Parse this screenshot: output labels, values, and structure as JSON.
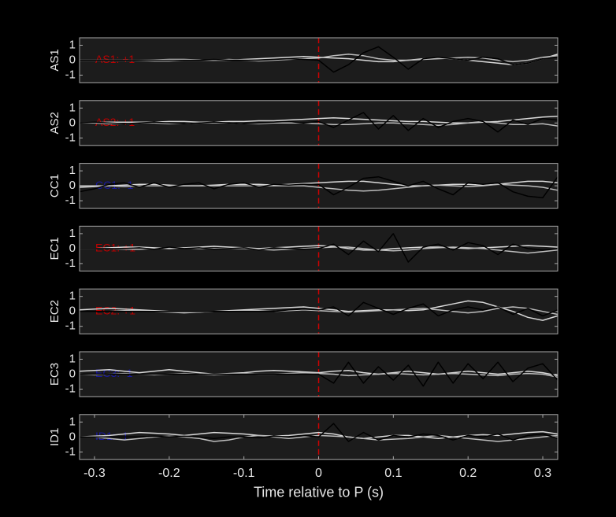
{
  "chart_data": [
    {
      "type": "line",
      "ylabel": "AS1",
      "annotation": "AS1: +1",
      "annotation_color": "#c00000",
      "x": [
        -0.32,
        -0.3,
        -0.28,
        -0.26,
        -0.24,
        -0.22,
        -0.2,
        -0.18,
        -0.16,
        -0.14,
        -0.12,
        -0.1,
        -0.08,
        -0.06,
        -0.04,
        -0.02,
        0,
        0.02,
        0.04,
        0.06,
        0.08,
        0.1,
        0.12,
        0.14,
        0.16,
        0.18,
        0.2,
        0.22,
        0.24,
        0.26,
        0.28,
        0.3,
        0.32
      ],
      "series": [
        {
          "color": "#d9d9d9",
          "values": [
            0,
            0,
            0,
            0,
            0,
            0.02,
            0.05,
            0.05,
            0.02,
            0,
            0,
            0.05,
            0.1,
            0.15,
            0.2,
            0.25,
            0.2,
            0.15,
            0.1,
            0,
            -0.1,
            -0.1,
            0,
            0.1,
            0.15,
            0.1,
            0,
            -0.1,
            -0.2,
            -0.3,
            -0.2,
            0.1,
            0.4
          ]
        },
        {
          "color": "#bdbdbd",
          "values": [
            0,
            0,
            0,
            0,
            -0.02,
            -0.05,
            -0.05,
            0,
            0,
            0,
            0.05,
            0,
            -0.05,
            0,
            0.05,
            0.1,
            0.15,
            0.3,
            0.4,
            0.3,
            0.1,
            0,
            0,
            0.05,
            0.1,
            0.15,
            0.2,
            0.15,
            0,
            -0.1,
            0,
            0.2,
            0.3
          ]
        },
        {
          "color": "#000000",
          "values": [
            0,
            0,
            0,
            0,
            0,
            0,
            0,
            0,
            0,
            0.05,
            0,
            0,
            0,
            0.05,
            0.1,
            0.05,
            0,
            -0.8,
            -0.3,
            0.5,
            0.9,
            0.2,
            -0.6,
            0.1,
            0.2,
            0.1,
            0,
            0.2,
            0.1,
            -0.3,
            -0.2,
            0.1,
            0.2
          ]
        }
      ],
      "xlim": [
        -0.32,
        0.32
      ],
      "ylim": [
        -1.5,
        1.5
      ],
      "yticks": [
        -1,
        0,
        1
      ],
      "vline": 0,
      "vline_color": "#d00000"
    },
    {
      "type": "line",
      "ylabel": "AS2",
      "annotation": "AS2: +1",
      "annotation_color": "#c00000",
      "x": [
        -0.32,
        -0.3,
        -0.28,
        -0.26,
        -0.24,
        -0.22,
        -0.2,
        -0.18,
        -0.16,
        -0.14,
        -0.12,
        -0.1,
        -0.08,
        -0.06,
        -0.04,
        -0.02,
        0,
        0.02,
        0.04,
        0.06,
        0.08,
        0.1,
        0.12,
        0.14,
        0.16,
        0.18,
        0.2,
        0.22,
        0.24,
        0.26,
        0.28,
        0.3,
        0.32
      ],
      "series": [
        {
          "color": "#d9d9d9",
          "values": [
            0,
            0.02,
            0.05,
            0.05,
            0.05,
            0.05,
            0.1,
            0.1,
            0.05,
            0.05,
            0.1,
            0.1,
            0.15,
            0.15,
            0.2,
            0.25,
            0.3,
            0.35,
            0.3,
            0.25,
            0.2,
            0.15,
            0.1,
            0.1,
            0.05,
            0,
            0,
            0.05,
            0.1,
            0.2,
            0.3,
            0.4,
            0.45
          ]
        },
        {
          "color": "#bdbdbd",
          "values": [
            0,
            0,
            -0.05,
            -0.05,
            0,
            0,
            -0.05,
            -0.05,
            0,
            0,
            0,
            -0.05,
            -0.05,
            0,
            0,
            0,
            -0.05,
            -0.1,
            -0.1,
            -0.05,
            0,
            0,
            -0.05,
            -0.1,
            -0.15,
            -0.1,
            0,
            0.1,
            0,
            -0.1,
            -0.1,
            -0.05,
            -0.2
          ]
        },
        {
          "color": "#000000",
          "values": [
            0,
            0.05,
            0,
            -0.05,
            0,
            0.05,
            0,
            -0.05,
            0,
            0.05,
            0,
            -0.05,
            0,
            0.05,
            0.1,
            0,
            0.1,
            -0.3,
            0.2,
            0.7,
            -0.4,
            0.5,
            -0.5,
            0.3,
            -0.3,
            0.1,
            0.3,
            0.1,
            -0.6,
            0.2,
            -0.1,
            0.3,
            0.2
          ]
        }
      ],
      "xlim": [
        -0.32,
        0.32
      ],
      "ylim": [
        -1.5,
        1.5
      ],
      "yticks": [
        -1,
        0,
        1
      ],
      "vline": 0,
      "vline_color": "#d00000"
    },
    {
      "type": "line",
      "ylabel": "CC1",
      "annotation": "CC1: -1",
      "annotation_color": "#1a1aa0",
      "x": [
        -0.32,
        -0.3,
        -0.28,
        -0.26,
        -0.24,
        -0.22,
        -0.2,
        -0.18,
        -0.16,
        -0.14,
        -0.12,
        -0.1,
        -0.08,
        -0.06,
        -0.04,
        -0.02,
        0,
        0.02,
        0.04,
        0.06,
        0.08,
        0.1,
        0.12,
        0.14,
        0.16,
        0.18,
        0.2,
        0.22,
        0.24,
        0.26,
        0.28,
        0.3,
        0.32
      ],
      "series": [
        {
          "color": "#d9d9d9",
          "values": [
            -0.1,
            -0.05,
            0,
            0.05,
            0.1,
            0.1,
            0.05,
            0,
            0,
            0.05,
            0.1,
            0.1,
            0.1,
            0.05,
            0.1,
            0.15,
            0.2,
            0.25,
            0.3,
            0.3,
            0.2,
            0.1,
            0,
            0,
            0.05,
            0.1,
            0.1,
            0.05,
            0.1,
            0.2,
            0.3,
            0.3,
            0.2
          ]
        },
        {
          "color": "#bdbdbd",
          "values": [
            0,
            0,
            0,
            -0.05,
            0,
            0,
            0,
            0,
            0,
            0,
            0,
            0,
            0,
            0,
            0,
            0,
            -0.1,
            -0.2,
            -0.3,
            -0.35,
            -0.3,
            -0.2,
            -0.1,
            0,
            0.05,
            0,
            -0.05,
            0,
            0.1,
            0.05,
            0,
            -0.1,
            -0.3
          ]
        },
        {
          "color": "#000000",
          "values": [
            -0.4,
            -0.2,
            0.1,
            0.2,
            -0.1,
            0.2,
            -0.1,
            0.1,
            0.2,
            -0.2,
            0.1,
            0.2,
            -0.1,
            0.1,
            0.05,
            0.1,
            0.1,
            -0.6,
            -0.1,
            0.5,
            0.6,
            0.3,
            0,
            0.3,
            -0.2,
            -0.6,
            0.2,
            0.1,
            0.2,
            -0.4,
            -0.7,
            -0.8,
            0.6
          ]
        }
      ],
      "xlim": [
        -0.32,
        0.32
      ],
      "ylim": [
        -1.5,
        1.5
      ],
      "yticks": [
        -1,
        0,
        1
      ],
      "vline": 0,
      "vline_color": "#d00000"
    },
    {
      "type": "line",
      "ylabel": "EC1",
      "annotation": "EC1: +1",
      "annotation_color": "#c00000",
      "x": [
        -0.32,
        -0.3,
        -0.28,
        -0.26,
        -0.24,
        -0.22,
        -0.2,
        -0.18,
        -0.16,
        -0.14,
        -0.12,
        -0.1,
        -0.08,
        -0.06,
        -0.04,
        -0.02,
        0,
        0.02,
        0.04,
        0.06,
        0.08,
        0.1,
        0.12,
        0.14,
        0.16,
        0.18,
        0.2,
        0.22,
        0.24,
        0.26,
        0.28,
        0.3,
        0.32
      ],
      "series": [
        {
          "color": "#d9d9d9",
          "values": [
            0,
            0,
            0.05,
            0.1,
            0.1,
            0.05,
            0,
            0.05,
            0.1,
            0.15,
            0.1,
            0.05,
            0,
            0.05,
            0.1,
            0.15,
            0.2,
            0.15,
            0,
            -0.1,
            -0.1,
            0,
            0.05,
            0.1,
            0.1,
            0.05,
            0,
            0.05,
            0.1,
            0.15,
            0.2,
            0.15,
            0.1
          ]
        },
        {
          "color": "#bdbdbd",
          "values": [
            0,
            0,
            0,
            -0.05,
            -0.05,
            0,
            0.05,
            0.05,
            0,
            0,
            0,
            0,
            -0.05,
            -0.1,
            -0.05,
            0,
            0.05,
            0.1,
            0.1,
            0,
            -0.1,
            -0.15,
            -0.1,
            0,
            0.05,
            0.1,
            0.05,
            0,
            -0.1,
            -0.2,
            -0.3,
            -0.2,
            -0.1
          ]
        },
        {
          "color": "#000000",
          "values": [
            0,
            0,
            0,
            0,
            0.05,
            -0.05,
            0.1,
            0,
            0.05,
            -0.05,
            0,
            0.05,
            -0.1,
            0.05,
            0,
            -0.05,
            0,
            0.3,
            -0.4,
            0.5,
            -0.2,
            1.0,
            -0.9,
            0.1,
            0.3,
            -0.1,
            0.4,
            0.2,
            -0.4,
            0.3,
            0,
            -0.1,
            0
          ]
        }
      ],
      "xlim": [
        -0.32,
        0.32
      ],
      "ylim": [
        -1.5,
        1.5
      ],
      "yticks": [
        -1,
        0,
        1
      ],
      "vline": 0,
      "vline_color": "#d00000"
    },
    {
      "type": "line",
      "ylabel": "EC2",
      "annotation": "EC2: +1",
      "annotation_color": "#c00000",
      "x": [
        -0.32,
        -0.3,
        -0.28,
        -0.26,
        -0.24,
        -0.22,
        -0.2,
        -0.18,
        -0.16,
        -0.14,
        -0.12,
        -0.1,
        -0.08,
        -0.06,
        -0.04,
        -0.02,
        0,
        0.02,
        0.04,
        0.06,
        0.08,
        0.1,
        0.12,
        0.14,
        0.16,
        0.18,
        0.2,
        0.22,
        0.24,
        0.26,
        0.28,
        0.3,
        0.32
      ],
      "series": [
        {
          "color": "#d9d9d9",
          "values": [
            0.1,
            0.15,
            0.2,
            0.15,
            0.1,
            0.05,
            0,
            -0.05,
            -0.05,
            0,
            0.05,
            0.1,
            0.15,
            0.2,
            0.25,
            0.3,
            0.2,
            0.1,
            0,
            0.05,
            0.1,
            0.1,
            0.05,
            0.1,
            0.3,
            0.5,
            0.7,
            0.6,
            0.3,
            0,
            -0.4,
            -0.6,
            -0.3
          ]
        },
        {
          "color": "#bdbdbd",
          "values": [
            0,
            0,
            0,
            0.05,
            0.05,
            0,
            -0.05,
            -0.1,
            -0.05,
            0,
            0,
            0.05,
            0.05,
            0,
            0.05,
            0.1,
            0.05,
            0,
            -0.05,
            0,
            0.05,
            0.1,
            0.15,
            0.2,
            0.1,
            0,
            -0.1,
            0,
            0.2,
            0.3,
            0.2,
            0,
            -0.2
          ]
        },
        {
          "color": "#000000",
          "values": [
            0,
            0,
            0,
            0,
            0,
            0,
            0,
            0,
            0,
            0,
            0,
            0,
            0,
            0,
            0.1,
            0.15,
            0.1,
            0.3,
            -0.3,
            0.6,
            0.2,
            -0.2,
            0.2,
            0.5,
            -0.3,
            0.1,
            0.3,
            0.1,
            0.3,
            -0.2,
            0.2,
            -0.3,
            0.1
          ]
        }
      ],
      "xlim": [
        -0.32,
        0.32
      ],
      "ylim": [
        -1.5,
        1.5
      ],
      "yticks": [
        -1,
        0,
        1
      ],
      "vline": 0,
      "vline_color": "#d00000"
    },
    {
      "type": "line",
      "ylabel": "EC3",
      "annotation": "EC3: -1",
      "annotation_color": "#1a1aa0",
      "x": [
        -0.32,
        -0.3,
        -0.28,
        -0.26,
        -0.24,
        -0.22,
        -0.2,
        -0.18,
        -0.16,
        -0.14,
        -0.12,
        -0.1,
        -0.08,
        -0.06,
        -0.04,
        -0.02,
        0,
        0.02,
        0.04,
        0.06,
        0.08,
        0.1,
        0.12,
        0.14,
        0.16,
        0.18,
        0.2,
        0.22,
        0.24,
        0.26,
        0.28,
        0.3,
        0.32
      ],
      "series": [
        {
          "color": "#d9d9d9",
          "values": [
            0.2,
            0.25,
            0.3,
            0.2,
            0.1,
            0.2,
            0.3,
            0.2,
            0.1,
            0,
            0.05,
            0.1,
            0.2,
            0.25,
            0.2,
            0.15,
            0.1,
            0.2,
            0.25,
            0.1,
            0,
            0.1,
            0.2,
            0.1,
            0,
            0.1,
            0.2,
            0.1,
            0,
            0.1,
            0.2,
            0.1,
            -0.1
          ]
        },
        {
          "color": "#bdbdbd",
          "values": [
            0,
            -0.05,
            0,
            0.05,
            0,
            -0.05,
            0,
            0.05,
            0,
            -0.05,
            0,
            0.05,
            0,
            0,
            0.05,
            0.1,
            0.05,
            0,
            -0.1,
            -0.05,
            0,
            0.05,
            0,
            -0.05,
            0,
            0.05,
            0,
            -0.05,
            -0.1,
            0,
            0.05,
            0,
            -0.2
          ]
        },
        {
          "color": "#000000",
          "values": [
            0,
            0,
            0,
            0,
            0,
            0,
            0,
            0,
            0,
            0,
            0,
            0,
            0,
            0,
            0,
            0,
            0,
            -0.6,
            0.8,
            -0.6,
            0.5,
            -0.4,
            0.6,
            -0.8,
            0.8,
            -0.6,
            0.7,
            -0.3,
            0.8,
            -0.5,
            0.4,
            0.7,
            -0.4
          ]
        }
      ],
      "xlim": [
        -0.32,
        0.32
      ],
      "ylim": [
        -1.5,
        1.5
      ],
      "yticks": [
        -1,
        0,
        1
      ],
      "vline": 0,
      "vline_color": "#d00000"
    },
    {
      "type": "line",
      "ylabel": "ID1",
      "annotation": "ID1: -1",
      "annotation_color": "#1a1aa0",
      "x": [
        -0.32,
        -0.3,
        -0.28,
        -0.26,
        -0.24,
        -0.22,
        -0.2,
        -0.18,
        -0.16,
        -0.14,
        -0.12,
        -0.1,
        -0.08,
        -0.06,
        -0.04,
        -0.02,
        0,
        0.02,
        0.04,
        0.06,
        0.08,
        0.1,
        0.12,
        0.14,
        0.16,
        0.18,
        0.2,
        0.22,
        0.24,
        0.26,
        0.28,
        0.3,
        0.32
      ],
      "series": [
        {
          "color": "#d9d9d9",
          "values": [
            0,
            0.05,
            0.1,
            0.2,
            0.3,
            0.25,
            0.2,
            0.1,
            0.2,
            0.3,
            0.25,
            0.2,
            0.1,
            0.05,
            0.1,
            0.2,
            0.3,
            0.2,
            0,
            -0.1,
            0,
            0.1,
            0.1,
            0,
            -0.1,
            0,
            0.1,
            0.15,
            0.1,
            0.2,
            0.3,
            0.35,
            0.2
          ]
        },
        {
          "color": "#bdbdbd",
          "values": [
            0,
            0,
            -0.1,
            -0.2,
            -0.1,
            0,
            0.05,
            0,
            -0.1,
            -0.3,
            -0.2,
            0,
            0.1,
            0,
            -0.1,
            0,
            0.1,
            0.05,
            0,
            -0.1,
            -0.2,
            -0.15,
            -0.1,
            0,
            0.1,
            0,
            -0.1,
            -0.2,
            -0.3,
            -0.2,
            -0.1,
            0,
            0.1
          ]
        },
        {
          "color": "#000000",
          "values": [
            0,
            0,
            0,
            0,
            0,
            0.05,
            0,
            0.05,
            0,
            -0.1,
            0,
            0,
            -0.05,
            0.05,
            0,
            0.1,
            0,
            0.9,
            -0.3,
            0.3,
            -0.2,
            0.1,
            0,
            0.2,
            0.1,
            -0.2,
            0.1,
            0,
            0.2,
            -0.2,
            0.1,
            0.2,
            -0.1
          ]
        }
      ],
      "xlim": [
        -0.32,
        0.32
      ],
      "ylim": [
        -1.5,
        1.5
      ],
      "yticks": [
        -1,
        0,
        1
      ],
      "vline": 0,
      "vline_color": "#d00000",
      "xticks": [
        -0.3,
        -0.2,
        -0.1,
        0,
        0.1,
        0.2,
        0.3
      ],
      "xlabel": "Time relative to P (s)"
    }
  ]
}
